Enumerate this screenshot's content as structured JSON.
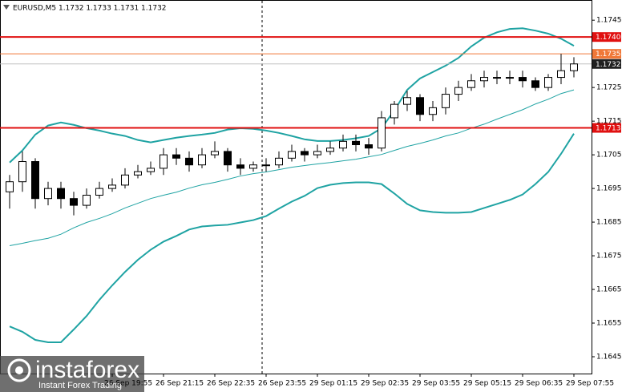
{
  "chart_data": {
    "type": "candlestick",
    "title": "EURUSD,M5  1.1732 1.1733 1.1731 1.1732",
    "categories": [
      null,
      null,
      null,
      null,
      null,
      null,
      null,
      null,
      "26 Sep 19:55",
      null,
      null,
      null,
      "26 Sep 21:15",
      null,
      null,
      null,
      "26 Sep 22:35",
      null,
      null,
      null,
      "26 Sep 23:55",
      null,
      null,
      null,
      "29 Sep 01:15",
      null,
      null,
      null,
      "29 Sep 02:35",
      null,
      null,
      null,
      "29 Sep 03:55",
      null,
      null,
      null,
      "29 Sep 05:15",
      null,
      null,
      null,
      "29 Sep 06:35",
      null,
      null,
      null,
      "29 Sep 07:55"
    ],
    "open": [
      1.1694,
      1.1697,
      1.1703,
      1.1692,
      1.1695,
      1.1692,
      1.169,
      1.1693,
      1.1695,
      1.1696,
      1.1699,
      1.17,
      1.1701,
      1.1705,
      1.1704,
      1.1702,
      1.1705,
      1.1706,
      1.1702,
      1.1701,
      1.1702,
      1.1702,
      1.1704,
      1.1706,
      1.1705,
      1.1706,
      1.1707,
      1.1709,
      1.1708,
      1.1707,
      1.1716,
      1.172,
      1.1722,
      1.1717,
      1.1719,
      1.1723,
      1.1725,
      1.1727,
      1.1728,
      1.1728,
      1.1728,
      1.1727,
      1.1725,
      1.1728,
      1.173
    ],
    "high": [
      1.1699,
      1.1706,
      1.1704,
      1.1697,
      1.1697,
      1.1694,
      1.1695,
      1.1697,
      1.1698,
      1.1701,
      1.1702,
      1.1703,
      1.1707,
      1.1707,
      1.1706,
      1.1707,
      1.1709,
      1.1707,
      1.1704,
      1.1703,
      1.1704,
      1.1706,
      1.1708,
      1.1707,
      1.1708,
      1.1709,
      1.1711,
      1.1711,
      1.171,
      1.1718,
      1.1721,
      1.1724,
      1.1723,
      1.1721,
      1.1725,
      1.1727,
      1.1729,
      1.173,
      1.173,
      1.173,
      1.173,
      1.1728,
      1.1729,
      1.1735,
      1.1734
    ],
    "low": [
      1.1689,
      1.1694,
      1.1689,
      1.169,
      1.1689,
      1.1687,
      1.1689,
      1.1692,
      1.1694,
      1.1695,
      1.1698,
      1.1699,
      1.1699,
      1.1702,
      1.17,
      1.1701,
      1.1704,
      1.17,
      1.1699,
      1.17,
      1.17,
      1.1701,
      1.1703,
      1.1703,
      1.1704,
      1.1705,
      1.1706,
      1.1706,
      1.1705,
      1.1706,
      1.1714,
      1.1718,
      1.1715,
      1.1715,
      1.1717,
      1.1721,
      1.1724,
      1.1725,
      1.1726,
      1.1726,
      1.1725,
      1.1724,
      1.1724,
      1.1726,
      1.1728
    ],
    "close": [
      1.1697,
      1.1703,
      1.1692,
      1.1695,
      1.1692,
      1.169,
      1.1693,
      1.1695,
      1.1696,
      1.1699,
      1.17,
      1.1701,
      1.1705,
      1.1704,
      1.1702,
      1.1705,
      1.1706,
      1.1702,
      1.1701,
      1.1702,
      1.1702,
      1.1704,
      1.1706,
      1.1705,
      1.1706,
      1.1707,
      1.1709,
      1.1708,
      1.1707,
      1.1716,
      1.172,
      1.1722,
      1.1717,
      1.1719,
      1.1723,
      1.1725,
      1.1727,
      1.1728,
      1.1728,
      1.1728,
      1.1727,
      1.1725,
      1.1728,
      1.173,
      1.1732
    ],
    "overlays": [
      {
        "color": "#1fa3a3",
        "width": 2,
        "values": [
          1.17027,
          1.17063,
          1.1711,
          1.17137,
          1.17146,
          1.17139,
          1.17129,
          1.17122,
          1.17113,
          1.17106,
          1.17094,
          1.17087,
          1.17094,
          1.17101,
          1.17106,
          1.1711,
          1.17115,
          1.17125,
          1.17129,
          1.17127,
          1.17122,
          1.17115,
          1.17106,
          1.17096,
          1.17091,
          1.17091,
          1.17094,
          1.17099,
          1.17106,
          1.17129,
          1.17182,
          1.17243,
          1.17277,
          1.17296,
          1.17315,
          1.17338,
          1.17372,
          1.17398,
          1.17414,
          1.17424,
          1.17426,
          1.17419,
          1.1741,
          1.17395,
          1.17374
        ]
      },
      {
        "color": "#1fa3a3",
        "width": 2,
        "values": [
          1.1654,
          1.16524,
          1.165,
          1.16493,
          1.16493,
          1.16531,
          1.16571,
          1.16619,
          1.16662,
          1.16702,
          1.16738,
          1.16768,
          1.16792,
          1.16809,
          1.16828,
          1.16837,
          1.1684,
          1.16842,
          1.16849,
          1.16856,
          1.16868,
          1.1689,
          1.16911,
          1.16928,
          1.16951,
          1.16961,
          1.16966,
          1.16968,
          1.16968,
          1.16963,
          1.16935,
          1.16904,
          1.16885,
          1.1688,
          1.16878,
          1.16878,
          1.1688,
          1.16892,
          1.16904,
          1.16916,
          1.16932,
          1.16963,
          1.16999,
          1.17053,
          1.17113
        ]
      },
      {
        "color": "#1fa3a3",
        "width": 1,
        "values": [
          1.1678,
          1.16787,
          1.16795,
          1.16802,
          1.16814,
          1.16833,
          1.16849,
          1.16861,
          1.16875,
          1.16892,
          1.16906,
          1.1692,
          1.1693,
          1.16939,
          1.16951,
          1.16961,
          1.16968,
          1.16977,
          1.16987,
          1.16994,
          1.16999,
          1.17006,
          1.17013,
          1.17018,
          1.17023,
          1.17027,
          1.17032,
          1.17037,
          1.17044,
          1.17051,
          1.17063,
          1.17075,
          1.17084,
          1.17094,
          1.17106,
          1.17115,
          1.17129,
          1.17141,
          1.17156,
          1.1717,
          1.17184,
          1.17201,
          1.17215,
          1.17232,
          1.17243
        ]
      }
    ],
    "hlines": [
      {
        "price": {
          "value": 1.174,
          "label": "1.1740"
        },
        "color": "#e01010",
        "width": 2
      },
      {
        "price": 1.1735,
        "color": "#f07838",
        "width": 1
      },
      {
        "price": 1.1732,
        "color": "#c0c0c0",
        "width": 1,
        "tag": "#202020"
      },
      {
        "price": 1.1713,
        "color": "#e01010",
        "width": 2
      }
    ],
    "ylim": [
      1.164,
      1.1751
    ],
    "yticks": [
      1.1745,
      1.1735,
      1.1725,
      1.1715,
      1.1705,
      1.1695,
      1.1685,
      1.1675,
      1.1665,
      1.1655,
      1.1645
    ],
    "bull_color": "#ffffff",
    "bear_color": "#000000"
  },
  "watermark": {
    "brand": "instaforex",
    "tagline": "Instant Forex Trading"
  }
}
